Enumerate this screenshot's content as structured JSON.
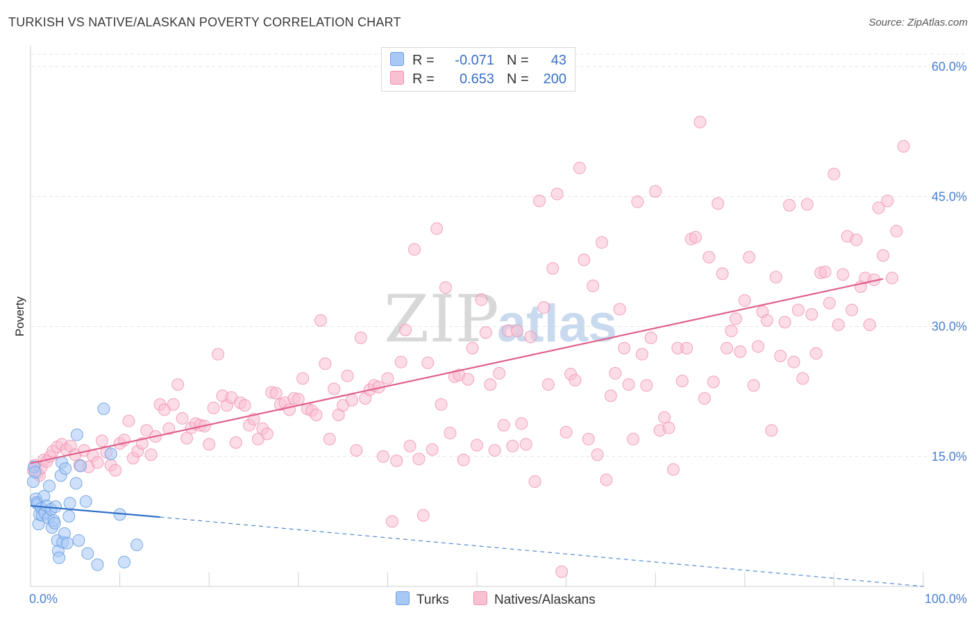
{
  "title": "TURKISH VS NATIVE/ALASKAN POVERTY CORRELATION CHART",
  "source": "Source: ZipAtlas.com",
  "watermark": {
    "zip": "ZIP",
    "atlas": "atlas"
  },
  "legend": {
    "rows": [
      {
        "r_label": "R =",
        "r_value": "-0.071",
        "n_label": "N =",
        "n_value": "43",
        "color": "#a8c8f5",
        "border": "#6a9ee0"
      },
      {
        "r_label": "R =",
        "r_value": "0.653",
        "n_label": "N =",
        "n_value": "200",
        "color": "#f9c0d2",
        "border": "#ee8fb0"
      }
    ]
  },
  "bottom_legend": {
    "turks": "Turks",
    "natives": "Natives/Alaskans"
  },
  "chart_data": {
    "type": "scatter",
    "ylabel": "Poverty",
    "xlabel": "",
    "xlim": [
      0,
      100
    ],
    "ylim": [
      0,
      60
    ],
    "x_tick_labels": [
      "0.0%",
      "100.0%"
    ],
    "y_ticks": [
      15,
      30,
      45,
      60
    ],
    "y_tick_labels": [
      "15.0%",
      "30.0%",
      "45.0%",
      "60.0%"
    ],
    "grid": true,
    "legend_position": "top-center",
    "colors": {
      "turks": "#6a9ee0",
      "turks_fill": "#a8c8f5",
      "natives": "#ee8fb0",
      "natives_fill": "#f9c0d2",
      "turks_line": "#3070c8",
      "natives_line": "#e0608a"
    },
    "series": [
      {
        "name": "Turks",
        "trend": {
          "x0": 0,
          "y0": 9.3,
          "x1": 14.5,
          "y1": 8.0,
          "dashed_to_x": 100,
          "dashed_to_y": 0.0
        },
        "points": [
          [
            0.3,
            12.1
          ],
          [
            0.4,
            13.8
          ],
          [
            0.5,
            13.2
          ],
          [
            0.6,
            10.1
          ],
          [
            0.7,
            9.7
          ],
          [
            0.8,
            9.5
          ],
          [
            0.9,
            7.2
          ],
          [
            1.0,
            8.3
          ],
          [
            1.2,
            9.0
          ],
          [
            1.3,
            8.2
          ],
          [
            1.5,
            10.4
          ],
          [
            1.6,
            8.5
          ],
          [
            1.8,
            9.3
          ],
          [
            2.0,
            7.9
          ],
          [
            2.1,
            11.6
          ],
          [
            2.3,
            8.9
          ],
          [
            2.4,
            6.8
          ],
          [
            2.6,
            7.6
          ],
          [
            2.7,
            7.3
          ],
          [
            2.8,
            9.2
          ],
          [
            3.0,
            5.3
          ],
          [
            3.1,
            4.1
          ],
          [
            3.2,
            3.3
          ],
          [
            3.4,
            12.8
          ],
          [
            3.5,
            14.3
          ],
          [
            3.6,
            5.1
          ],
          [
            3.8,
            6.1
          ],
          [
            3.9,
            13.6
          ],
          [
            4.1,
            5.0
          ],
          [
            4.3,
            8.1
          ],
          [
            4.4,
            9.6
          ],
          [
            5.1,
            11.9
          ],
          [
            5.2,
            17.5
          ],
          [
            5.4,
            5.3
          ],
          [
            5.6,
            13.9
          ],
          [
            6.2,
            9.8
          ],
          [
            6.4,
            3.8
          ],
          [
            7.5,
            2.5
          ],
          [
            8.2,
            20.5
          ],
          [
            9.0,
            15.3
          ],
          [
            10.0,
            8.3
          ],
          [
            10.5,
            2.8
          ],
          [
            11.9,
            4.8
          ]
        ]
      },
      {
        "name": "Natives/Alaskans",
        "trend": {
          "x0": 0,
          "y0": 14.2,
          "x1": 95.5,
          "y1": 35.5
        },
        "points": [
          [
            0.3,
            13.4
          ],
          [
            0.5,
            14.0
          ],
          [
            0.8,
            13.1
          ],
          [
            1.0,
            12.8
          ],
          [
            1.2,
            13.7
          ],
          [
            1.5,
            14.6
          ],
          [
            1.8,
            14.4
          ],
          [
            2.2,
            15.0
          ],
          [
            2.5,
            15.6
          ],
          [
            3.0,
            16.1
          ],
          [
            3.5,
            16.4
          ],
          [
            4.0,
            15.8
          ],
          [
            4.5,
            16.2
          ],
          [
            5.0,
            15.2
          ],
          [
            5.5,
            14.0
          ],
          [
            6.0,
            15.7
          ],
          [
            6.5,
            13.8
          ],
          [
            7.0,
            15.1
          ],
          [
            7.5,
            14.3
          ],
          [
            8.0,
            16.8
          ],
          [
            8.5,
            15.5
          ],
          [
            9.0,
            14.0
          ],
          [
            9.5,
            13.4
          ],
          [
            10.0,
            16.5
          ],
          [
            10.5,
            16.9
          ],
          [
            11.0,
            19.1
          ],
          [
            11.5,
            14.8
          ],
          [
            12.0,
            15.6
          ],
          [
            12.5,
            16.5
          ],
          [
            13.0,
            18.0
          ],
          [
            13.5,
            15.2
          ],
          [
            14.0,
            17.3
          ],
          [
            14.5,
            21.0
          ],
          [
            15.0,
            20.4
          ],
          [
            15.5,
            18.2
          ],
          [
            16.0,
            21.0
          ],
          [
            16.5,
            23.3
          ],
          [
            17.0,
            19.4
          ],
          [
            17.5,
            17.1
          ],
          [
            18.0,
            18.3
          ],
          [
            18.5,
            18.8
          ],
          [
            19.0,
            18.6
          ],
          [
            19.5,
            18.5
          ],
          [
            20.0,
            16.4
          ],
          [
            20.5,
            20.6
          ],
          [
            21.0,
            26.8
          ],
          [
            21.5,
            22.0
          ],
          [
            22.0,
            20.9
          ],
          [
            22.5,
            21.8
          ],
          [
            23.0,
            16.6
          ],
          [
            23.5,
            21.2
          ],
          [
            24.0,
            20.9
          ],
          [
            24.5,
            18.6
          ],
          [
            25.0,
            19.3
          ],
          [
            25.5,
            17.0
          ],
          [
            26.0,
            18.2
          ],
          [
            26.5,
            17.6
          ],
          [
            27.0,
            22.4
          ],
          [
            27.5,
            22.3
          ],
          [
            28.0,
            21.0
          ],
          [
            28.5,
            21.2
          ],
          [
            29.0,
            20.4
          ],
          [
            29.5,
            21.7
          ],
          [
            30.0,
            21.6
          ],
          [
            30.5,
            24.0
          ],
          [
            31.0,
            20.5
          ],
          [
            31.5,
            20.3
          ],
          [
            32.0,
            19.8
          ],
          [
            32.5,
            30.7
          ],
          [
            33.0,
            25.7
          ],
          [
            33.5,
            17.0
          ],
          [
            34.0,
            22.8
          ],
          [
            34.5,
            19.8
          ],
          [
            35.0,
            20.9
          ],
          [
            35.5,
            24.3
          ],
          [
            36.0,
            21.5
          ],
          [
            36.5,
            15.7
          ],
          [
            37.0,
            28.7
          ],
          [
            37.5,
            21.7
          ],
          [
            38.0,
            22.7
          ],
          [
            38.5,
            23.2
          ],
          [
            39.0,
            23.0
          ],
          [
            39.5,
            15.0
          ],
          [
            40.0,
            24.0
          ],
          [
            40.5,
            7.5
          ],
          [
            41.0,
            14.5
          ],
          [
            41.5,
            25.9
          ],
          [
            42.0,
            29.6
          ],
          [
            42.5,
            16.2
          ],
          [
            43.0,
            38.9
          ],
          [
            43.5,
            14.7
          ],
          [
            44.0,
            8.2
          ],
          [
            44.5,
            25.8
          ],
          [
            45.0,
            15.8
          ],
          [
            45.5,
            41.3
          ],
          [
            46.0,
            21.0
          ],
          [
            46.5,
            34.5
          ],
          [
            47.0,
            17.7
          ],
          [
            47.5,
            24.2
          ],
          [
            48.0,
            24.4
          ],
          [
            48.5,
            14.6
          ],
          [
            49.0,
            23.9
          ],
          [
            49.5,
            27.5
          ],
          [
            50.0,
            16.3
          ],
          [
            50.5,
            33.1
          ],
          [
            51.0,
            29.3
          ],
          [
            51.5,
            23.3
          ],
          [
            52.0,
            15.7
          ],
          [
            52.5,
            24.6
          ],
          [
            53.0,
            18.6
          ],
          [
            53.5,
            29.5
          ],
          [
            54.0,
            16.2
          ],
          [
            54.5,
            29.5
          ],
          [
            55.0,
            18.8
          ],
          [
            55.5,
            16.4
          ],
          [
            56.0,
            28.8
          ],
          [
            56.5,
            12.1
          ],
          [
            57.0,
            44.5
          ],
          [
            57.5,
            32.2
          ],
          [
            58.0,
            23.3
          ],
          [
            58.5,
            36.7
          ],
          [
            59.0,
            45.3
          ],
          [
            59.5,
            1.7
          ],
          [
            60.0,
            17.8
          ],
          [
            60.5,
            24.5
          ],
          [
            61.0,
            23.8
          ],
          [
            61.5,
            48.3
          ],
          [
            62.0,
            37.7
          ],
          [
            62.5,
            17.0
          ],
          [
            63.0,
            34.7
          ],
          [
            63.5,
            15.2
          ],
          [
            64.0,
            39.7
          ],
          [
            64.5,
            12.3
          ],
          [
            65.0,
            22.0
          ],
          [
            65.5,
            24.6
          ],
          [
            66.0,
            32.0
          ],
          [
            66.5,
            27.5
          ],
          [
            67.0,
            23.3
          ],
          [
            67.5,
            17.0
          ],
          [
            68.0,
            44.4
          ],
          [
            68.5,
            26.8
          ],
          [
            69.0,
            23.2
          ],
          [
            69.5,
            28.7
          ],
          [
            70.0,
            45.6
          ],
          [
            70.5,
            18.0
          ],
          [
            71.0,
            19.5
          ],
          [
            71.5,
            18.3
          ],
          [
            72.0,
            13.5
          ],
          [
            72.5,
            27.5
          ],
          [
            73.0,
            23.7
          ],
          [
            73.5,
            27.5
          ],
          [
            74.0,
            40.1
          ],
          [
            74.5,
            40.3
          ],
          [
            75.0,
            53.6
          ],
          [
            75.5,
            21.7
          ],
          [
            76.0,
            38.0
          ],
          [
            76.5,
            23.6
          ],
          [
            77.0,
            44.2
          ],
          [
            77.5,
            36.1
          ],
          [
            78.0,
            27.5
          ],
          [
            78.5,
            29.5
          ],
          [
            79.0,
            30.9
          ],
          [
            79.5,
            27.1
          ],
          [
            80.0,
            33.0
          ],
          [
            80.5,
            38.0
          ],
          [
            81.0,
            23.2
          ],
          [
            81.5,
            27.7
          ],
          [
            82.0,
            31.7
          ],
          [
            82.5,
            30.7
          ],
          [
            83.0,
            18.0
          ],
          [
            83.5,
            35.7
          ],
          [
            84.0,
            26.6
          ],
          [
            84.5,
            30.5
          ],
          [
            85.0,
            44.0
          ],
          [
            85.5,
            25.9
          ],
          [
            86.0,
            31.9
          ],
          [
            86.5,
            24.0
          ],
          [
            87.0,
            44.1
          ],
          [
            87.5,
            31.4
          ],
          [
            88.0,
            26.9
          ],
          [
            88.5,
            36.2
          ],
          [
            89.0,
            36.3
          ],
          [
            89.5,
            32.7
          ],
          [
            90.0,
            47.6
          ],
          [
            90.5,
            30.2
          ],
          [
            91.0,
            36.0
          ],
          [
            91.5,
            40.4
          ],
          [
            92.0,
            31.9
          ],
          [
            92.5,
            40.0
          ],
          [
            93.0,
            34.6
          ],
          [
            93.5,
            35.6
          ],
          [
            94.0,
            30.2
          ],
          [
            94.5,
            35.4
          ],
          [
            95.0,
            43.7
          ],
          [
            95.5,
            38.2
          ],
          [
            96.0,
            44.5
          ],
          [
            96.5,
            35.6
          ],
          [
            97.0,
            41.0
          ],
          [
            97.8,
            50.8
          ]
        ]
      }
    ]
  }
}
